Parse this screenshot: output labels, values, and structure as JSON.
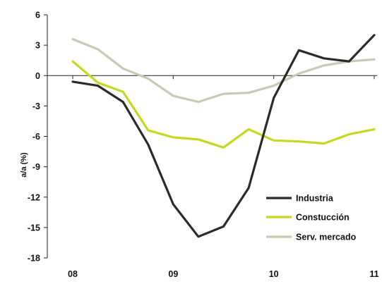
{
  "chart_data": {
    "type": "line",
    "title": "",
    "xlabel": "",
    "ylabel": "a/a (%)",
    "ylim": [
      -18,
      6
    ],
    "yticks": [
      6,
      3,
      0,
      -3,
      -6,
      -9,
      -12,
      -15,
      -18
    ],
    "xlim": [
      2008,
      2011
    ],
    "xticks": [
      {
        "value": 2008,
        "label": "08"
      },
      {
        "value": 2009,
        "label": "09"
      },
      {
        "value": 2010,
        "label": "10"
      },
      {
        "value": 2011,
        "label": "11"
      }
    ],
    "grid": false,
    "legend_position": "bottom-right",
    "x": [
      2008.0,
      2008.25,
      2008.5,
      2008.75,
      2009.0,
      2009.25,
      2009.5,
      2009.75,
      2010.0,
      2010.25,
      2010.5,
      2010.75,
      2011.0
    ],
    "series": [
      {
        "name": "Industria",
        "color": "#2b2b2b",
        "values": [
          -0.6,
          -1.0,
          -2.6,
          -6.8,
          -12.7,
          -15.9,
          -14.9,
          -11.1,
          -2.2,
          2.5,
          1.7,
          1.4,
          4.0
        ]
      },
      {
        "name": "Constucción",
        "color": "#c6d821",
        "values": [
          1.4,
          -0.7,
          -1.6,
          -5.4,
          -6.1,
          -6.3,
          -7.1,
          -5.3,
          -6.4,
          -6.5,
          -6.7,
          -5.8,
          -5.3
        ]
      },
      {
        "name": "Serv. mercado",
        "color": "#c8cab4",
        "values": [
          3.6,
          2.6,
          0.7,
          -0.3,
          -2.0,
          -2.6,
          -1.8,
          -1.7,
          -1.0,
          0.2,
          1.0,
          1.4,
          1.6
        ]
      }
    ]
  }
}
